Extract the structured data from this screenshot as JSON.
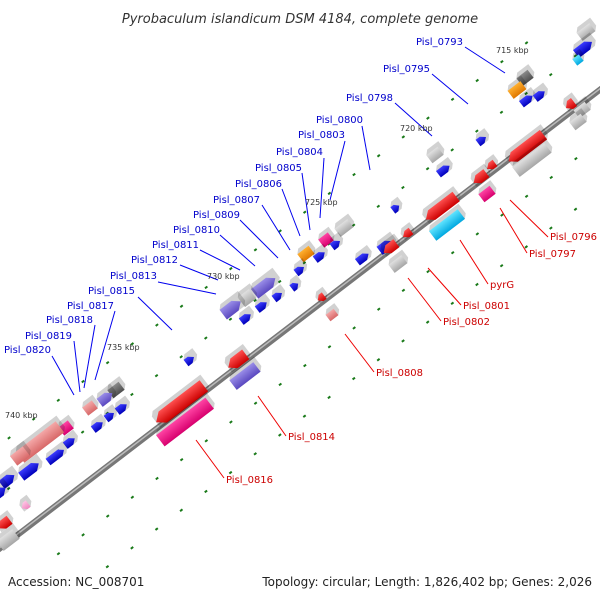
{
  "title": "Pyrobaculum islandicum DSM 4184, complete genome",
  "accession": "Accession: NC_008701",
  "summary": "Topology: circular; Length: 1,826,402 bp; Genes: 2,026",
  "scale_ticks": [
    "715 kbp",
    "720 kbp",
    "725 kbp",
    "730 kbp",
    "735 kbp",
    "740 kbp"
  ],
  "blue_labels": [
    "Pisl_0793",
    "Pisl_0795",
    "Pisl_0798",
    "Pisl_0800",
    "Pisl_0803",
    "Pisl_0804",
    "Pisl_0805",
    "Pisl_0806",
    "Pisl_0807",
    "Pisl_0809",
    "Pisl_0810",
    "Pisl_0811",
    "Pisl_0812",
    "Pisl_0813",
    "Pisl_0815",
    "Pisl_0817",
    "Pisl_0818",
    "Pisl_0819",
    "Pisl_0820"
  ],
  "red_labels": [
    "Pisl_0796",
    "Pisl_0797",
    "pyrG",
    "Pisl_0801",
    "Pisl_0802",
    "Pisl_0808",
    "Pisl_0814",
    "Pisl_0816"
  ],
  "colors": {
    "forward_gene": "#0000ee",
    "reverse_gene": "#ee0000",
    "backbone": "#888888",
    "blue_label": "#0000cc",
    "red_label": "#cc0000",
    "tick_mark": "#1a7a1a"
  }
}
